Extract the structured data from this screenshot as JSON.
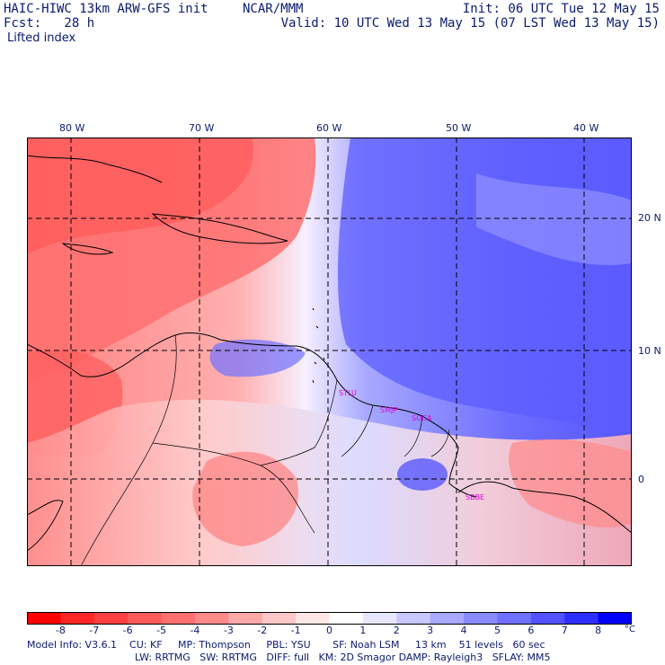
{
  "header": {
    "model": "HAIC-HIWC 13km ARW-GFS init",
    "org": "NCAR/MMM",
    "init": "Init: 06 UTC Tue 12 May 15",
    "fcst": "Fcst:   28 h",
    "valid": "Valid: 10 UTC Wed 13 May 15 (07 LST Wed 13 May 15)",
    "field": "Lifted index"
  },
  "axes": {
    "lon_labels": [
      "80 W",
      "70 W",
      "60 W",
      "50 W",
      "40 W"
    ],
    "lat_labels": [
      "20 N",
      "10 N",
      "0"
    ]
  },
  "map_data": {
    "field": "Lifted index",
    "units": "°C",
    "levels": [
      -8,
      -7,
      -6,
      -5,
      -4,
      -3,
      -2,
      -1,
      0,
      1,
      2,
      3,
      4,
      5,
      6,
      7,
      8
    ],
    "colors": [
      "#ff0000",
      "#ff2626",
      "#ff4040",
      "#ff5a5a",
      "#ff7070",
      "#ff8a8a",
      "#ffa8a8",
      "#ffc8c8",
      "#ffe6e6",
      "#ffffff",
      "#e6e6ff",
      "#c8c8ff",
      "#a8a8ff",
      "#8a8aff",
      "#7070ff",
      "#5252ff",
      "#2e2eff",
      "#0000ff"
    ],
    "stations": [
      "STLU",
      "SMJP",
      "SOCA",
      "SBBE"
    ]
  },
  "colorbar": {
    "labels": [
      "-8",
      "-7",
      "-6",
      "-5",
      "-4",
      "-3",
      "-2",
      "-1",
      "0",
      "1",
      "2",
      "3",
      "4",
      "5",
      "6",
      "7",
      "8"
    ],
    "unit": "°C"
  },
  "footer": {
    "line1": "Model Info: V3.6.1    CU: KF     MP: Thompson     PBL: YSU       SF: Noah LSM     13 km    51 levels   60 sec",
    "line2": "LW: RRTMG   SW: RRTMG   DIFF: full   KM: 2D Smagor DAMP: Rayleigh3   SFLAY: MM5"
  }
}
